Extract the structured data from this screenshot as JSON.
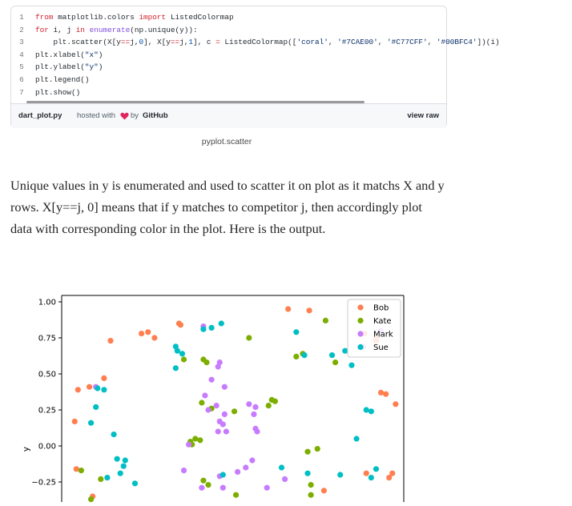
{
  "gist": {
    "lines": [
      {
        "n": "1",
        "parts": [
          [
            "kw",
            "from"
          ],
          [
            "t",
            " matplotlib.colors "
          ],
          [
            "kw",
            "import"
          ],
          [
            "t",
            " ListedColormap"
          ]
        ]
      },
      {
        "n": "2",
        "parts": [
          [
            "kw",
            "for"
          ],
          [
            "t",
            " i, j "
          ],
          [
            "kw",
            "in"
          ],
          [
            "t",
            " "
          ],
          [
            "fn",
            "enumerate"
          ],
          [
            "t",
            "(np.unique(y)):"
          ]
        ]
      },
      {
        "n": "3",
        "parts": [
          [
            "t",
            "    plt.scatter(X[y"
          ],
          [
            "kw",
            "=="
          ],
          [
            "t",
            "j,"
          ],
          [
            "num",
            "0"
          ],
          [
            "t",
            "], X[y"
          ],
          [
            "kw",
            "=="
          ],
          [
            "t",
            "j,"
          ],
          [
            "num",
            "1"
          ],
          [
            "t",
            "], c "
          ],
          [
            "kw",
            "="
          ],
          [
            "t",
            " ListedColormap(["
          ],
          [
            "str",
            "'coral'"
          ],
          [
            "t",
            ", "
          ],
          [
            "str",
            "'#7CAE00'"
          ],
          [
            "t",
            ", "
          ],
          [
            "str",
            "'#C77CFF'"
          ],
          [
            "t",
            ", "
          ],
          [
            "str",
            "'#00BFC4'"
          ],
          [
            "t",
            "])(i)"
          ]
        ]
      },
      {
        "n": "4",
        "parts": [
          [
            "t",
            "plt.xlabel("
          ],
          [
            "str",
            "\"x\""
          ],
          [
            "t",
            ")"
          ]
        ]
      },
      {
        "n": "5",
        "parts": [
          [
            "t",
            "plt.ylabel("
          ],
          [
            "str",
            "\"y\""
          ],
          [
            "t",
            ")"
          ]
        ]
      },
      {
        "n": "6",
        "parts": [
          [
            "t",
            "plt.legend()"
          ]
        ]
      },
      {
        "n": "7",
        "parts": [
          [
            "t",
            "plt.show()"
          ]
        ]
      }
    ],
    "footer": {
      "filename": "dart_plot.py",
      "hosted_with": "hosted with",
      "by": "by",
      "github": "GitHub",
      "view_raw": "view raw"
    }
  },
  "caption": "pyplot.scatter",
  "paragraph": "Unique values in y is enumerated and used to scatter it on plot as it matchs X and y rows. X[y==j, 0] means that if y matches to competitor j, then accordingly plot data with corresponding color in the plot. Here is the output.",
  "chart_data": {
    "type": "scatter",
    "xlabel": "",
    "ylabel": "y",
    "ylim": [
      -0.38,
      1.05
    ],
    "xlim": [
      -1.05,
      1.05
    ],
    "yticks": [
      "1.00",
      "0.75",
      "0.50",
      "0.25",
      "0.00",
      "−0.25"
    ],
    "ytick_values": [
      1.0,
      0.75,
      0.5,
      0.25,
      0.0,
      -0.25
    ],
    "legend_position": "top-right",
    "series": [
      {
        "name": "Bob",
        "color": "#ff7f50",
        "points": [
          [
            0.34,
            0.95
          ],
          [
            0.47,
            0.94
          ],
          [
            -0.33,
            0.85
          ],
          [
            -0.32,
            0.84
          ],
          [
            -0.75,
            0.73
          ],
          [
            -0.56,
            0.78
          ],
          [
            -0.52,
            0.79
          ],
          [
            -0.48,
            0.75
          ],
          [
            0.81,
            0.78
          ],
          [
            0.88,
            0.75
          ],
          [
            0.88,
            0.73
          ],
          [
            -0.95,
            0.39
          ],
          [
            -0.88,
            0.41
          ],
          [
            -0.79,
            0.47
          ],
          [
            -0.97,
            0.17
          ],
          [
            0.91,
            0.37
          ],
          [
            0.94,
            0.36
          ],
          [
            1.0,
            0.29
          ],
          [
            -0.96,
            -0.16
          ],
          [
            0.82,
            -0.19
          ],
          [
            0.98,
            -0.19
          ],
          [
            0.96,
            -0.22
          ],
          [
            0.56,
            -0.31
          ],
          [
            -0.86,
            -0.35
          ]
        ]
      },
      {
        "name": "Kate",
        "color": "#7cae00",
        "points": [
          [
            -0.3,
            0.6
          ],
          [
            -0.18,
            0.6
          ],
          [
            -0.16,
            0.58
          ],
          [
            0.1,
            0.75
          ],
          [
            0.39,
            0.62
          ],
          [
            0.43,
            0.64
          ],
          [
            0.57,
            0.87
          ],
          [
            0.63,
            0.58
          ],
          [
            -0.19,
            0.3
          ],
          [
            -0.13,
            0.26
          ],
          [
            0.01,
            0.24
          ],
          [
            0.22,
            0.28
          ],
          [
            0.24,
            0.32
          ],
          [
            0.26,
            0.31
          ],
          [
            -0.26,
            0.03
          ],
          [
            -0.25,
            0.01
          ],
          [
            -0.23,
            0.05
          ],
          [
            -0.2,
            0.04
          ],
          [
            0.46,
            -0.04
          ],
          [
            0.52,
            -0.02
          ],
          [
            -0.93,
            -0.17
          ],
          [
            -0.81,
            -0.23
          ],
          [
            -0.18,
            -0.24
          ],
          [
            -0.15,
            -0.27
          ],
          [
            0.48,
            -0.27
          ],
          [
            0.48,
            -0.34
          ],
          [
            0.02,
            -0.34
          ],
          [
            -0.87,
            -0.37
          ]
        ]
      },
      {
        "name": "Mark",
        "color": "#c77cff",
        "points": [
          [
            -0.18,
            0.83
          ],
          [
            -0.09,
            0.55
          ],
          [
            -0.08,
            0.58
          ],
          [
            -0.13,
            0.46
          ],
          [
            -0.05,
            0.41
          ],
          [
            -0.17,
            0.35
          ],
          [
            -0.1,
            0.28
          ],
          [
            -0.15,
            0.25
          ],
          [
            -0.05,
            0.22
          ],
          [
            -0.08,
            0.17
          ],
          [
            -0.06,
            0.15
          ],
          [
            -0.09,
            0.1
          ],
          [
            -0.04,
            0.1
          ],
          [
            0.1,
            0.29
          ],
          [
            0.14,
            0.27
          ],
          [
            0.13,
            0.22
          ],
          [
            0.14,
            0.12
          ],
          [
            0.15,
            0.1
          ],
          [
            -0.84,
            0.41
          ],
          [
            0.8,
            0.69
          ],
          [
            0.91,
            0.8
          ],
          [
            0.12,
            -0.1
          ],
          [
            0.08,
            -0.15
          ],
          [
            0.03,
            -0.18
          ],
          [
            -0.3,
            -0.17
          ],
          [
            -0.08,
            -0.21
          ],
          [
            -0.19,
            -0.29
          ],
          [
            -0.06,
            -0.29
          ],
          [
            0.21,
            -0.29
          ],
          [
            0.32,
            -0.23
          ],
          [
            -0.27,
            0.01
          ]
        ]
      },
      {
        "name": "Sue",
        "color": "#00bfc4",
        "points": [
          [
            -0.13,
            0.82
          ],
          [
            -0.07,
            0.85
          ],
          [
            -0.18,
            0.81
          ],
          [
            0.39,
            0.79
          ],
          [
            0.44,
            0.63
          ],
          [
            0.61,
            0.63
          ],
          [
            0.69,
            0.66
          ],
          [
            0.73,
            0.56
          ],
          [
            -0.35,
            0.69
          ],
          [
            -0.34,
            0.66
          ],
          [
            -0.31,
            0.64
          ],
          [
            -0.35,
            0.54
          ],
          [
            -0.83,
            0.4
          ],
          [
            -0.79,
            0.39
          ],
          [
            -0.84,
            0.27
          ],
          [
            -0.87,
            0.16
          ],
          [
            -0.73,
            0.08
          ],
          [
            -0.71,
            -0.09
          ],
          [
            -0.66,
            -0.1
          ],
          [
            -0.67,
            -0.14
          ],
          [
            -0.69,
            -0.19
          ],
          [
            -0.77,
            -0.22
          ],
          [
            -0.6,
            -0.26
          ],
          [
            0.82,
            0.25
          ],
          [
            0.85,
            0.24
          ],
          [
            0.76,
            0.05
          ],
          [
            0.66,
            -0.2
          ],
          [
            0.85,
            -0.22
          ],
          [
            0.88,
            -0.16
          ],
          [
            -0.06,
            -0.2
          ],
          [
            0.3,
            -0.15
          ],
          [
            0.46,
            -0.19
          ]
        ]
      }
    ]
  }
}
